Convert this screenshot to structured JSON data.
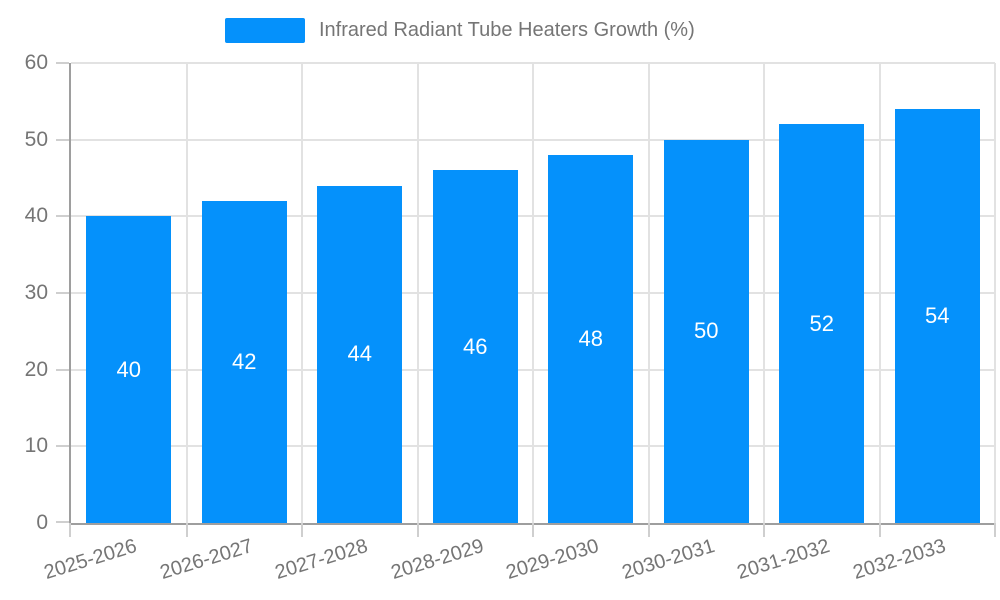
{
  "legend": {
    "label": "Infrared Radiant Tube Heaters Growth (%)"
  },
  "chart_data": {
    "type": "bar",
    "title": "Infrared Radiant Tube Heaters Growth (%)",
    "categories": [
      "2025-2026",
      "2026-2027",
      "2027-2028",
      "2028-2029",
      "2029-2030",
      "2030-2031",
      "2031-2032",
      "2032-2033"
    ],
    "values": [
      40,
      42,
      44,
      46,
      48,
      50,
      52,
      54
    ],
    "xlabel": "",
    "ylabel": "",
    "ylim": [
      0,
      60
    ],
    "yticks": [
      0,
      10,
      20,
      30,
      40,
      50,
      60
    ],
    "grid": true,
    "legend_position": "top-center",
    "bar_color": "#0591fb",
    "bar_label_color": "#ffffff",
    "axis_text_color": "#757575",
    "axis_line_color": "#9e9e9e",
    "gridline_color": "#e2e2e2"
  }
}
